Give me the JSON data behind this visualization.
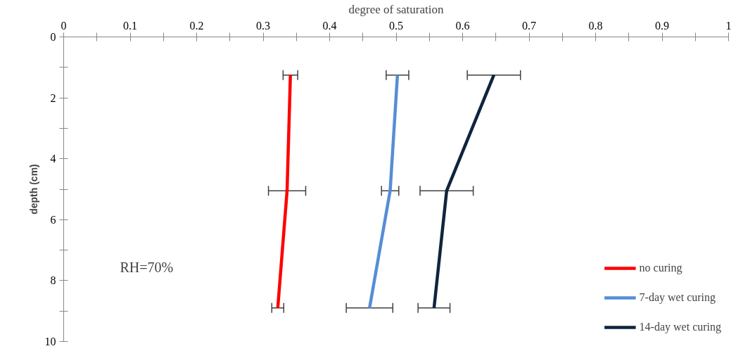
{
  "chart_data": {
    "type": "line",
    "xlabel": "degree of saturation",
    "ylabel": "depth (cm)",
    "xlim": [
      0,
      1
    ],
    "ylim": [
      10,
      0
    ],
    "xticks": [
      0,
      {
        "value": 0.05,
        "label": null
      },
      0.1,
      {
        "value": 0.15,
        "label": null
      },
      0.2,
      {
        "value": 0.25,
        "label": null
      },
      0.3,
      {
        "value": 0.35,
        "label": null
      },
      0.4,
      {
        "value": 0.45,
        "label": null
      },
      0.5,
      {
        "value": 0.55,
        "label": null
      },
      0.6,
      {
        "value": 0.65,
        "label": null
      },
      0.7,
      {
        "value": 0.75,
        "label": null
      },
      0.8,
      {
        "value": 0.85,
        "label": null
      },
      0.9,
      {
        "value": 0.95,
        "label": null
      },
      1
    ],
    "yticks": [
      0,
      {
        "value": 1,
        "label": null
      },
      2,
      {
        "value": 3,
        "label": null
      },
      4,
      {
        "value": 5,
        "label": null
      },
      6,
      {
        "value": 7,
        "label": null
      },
      8,
      {
        "value": 9,
        "label": null
      },
      10
    ],
    "grid": false,
    "legend": "bottom right",
    "marker": "none",
    "line_style": "solid",
    "annotations": [
      "RH=70%"
    ],
    "series": [
      {
        "name": "no curing",
        "color": "#ff0000",
        "x": [
          0.341,
          0.336,
          0.322
        ],
        "values": [
          1.25,
          5.05,
          8.9
        ],
        "xerrors": [
          0.011,
          0.028,
          0.009
        ]
      },
      {
        "name": "7-day wet curing",
        "color": "#558ed5",
        "x": [
          0.502,
          0.491,
          0.46
        ],
        "values": [
          1.25,
          5.05,
          8.9
        ],
        "xerrors": [
          0.017,
          0.013,
          0.035
        ]
      },
      {
        "name": "14-day wet curing",
        "color": "#0f243e",
        "x": [
          0.647,
          0.576,
          0.557
        ],
        "values": [
          1.25,
          5.05,
          8.9
        ],
        "xerrors": [
          0.04,
          0.04,
          0.024
        ]
      }
    ]
  }
}
